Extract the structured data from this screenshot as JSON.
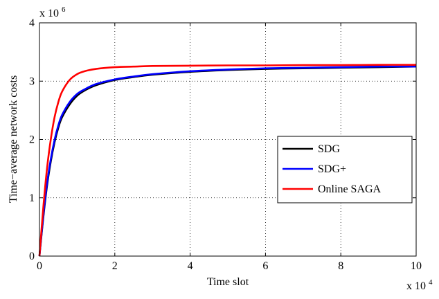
{
  "chart_data": {
    "type": "line",
    "title": "",
    "xlabel": "Time slot",
    "ylabel": "Time−average network costs",
    "x_multiplier_label": "x 10",
    "x_multiplier_exp": "4",
    "y_multiplier_label": "x 10",
    "y_multiplier_exp": "6",
    "xlim": [
      0,
      10
    ],
    "ylim": [
      0,
      4
    ],
    "xticks": [
      0,
      2,
      4,
      6,
      8,
      10
    ],
    "yticks": [
      0,
      1,
      2,
      3,
      4
    ],
    "xtick_labels": [
      "0",
      "2",
      "4",
      "6",
      "8",
      "10"
    ],
    "ytick_labels": [
      "0",
      "1",
      "2",
      "3",
      "4"
    ],
    "grid": true,
    "legend_position": "right-center",
    "series": [
      {
        "name": "SDG",
        "color": "#000000",
        "x": [
          0,
          0.1,
          0.2,
          0.3,
          0.4,
          0.5,
          0.6,
          0.8,
          1,
          1.2,
          1.5,
          2,
          2.5,
          3,
          4,
          5,
          6,
          7,
          8,
          9,
          10
        ],
        "y": [
          0,
          0.65,
          1.2,
          1.62,
          1.95,
          2.2,
          2.38,
          2.6,
          2.75,
          2.84,
          2.93,
          3.02,
          3.07,
          3.11,
          3.16,
          3.19,
          3.21,
          3.22,
          3.23,
          3.24,
          3.25
        ]
      },
      {
        "name": "SDG+",
        "color": "#0000ff",
        "x": [
          0,
          0.1,
          0.2,
          0.3,
          0.4,
          0.5,
          0.6,
          0.8,
          1,
          1.2,
          1.5,
          2,
          2.5,
          3,
          4,
          5,
          6,
          7,
          8,
          9,
          10
        ],
        "y": [
          0,
          0.68,
          1.24,
          1.66,
          1.99,
          2.24,
          2.42,
          2.64,
          2.78,
          2.86,
          2.95,
          3.03,
          3.08,
          3.12,
          3.17,
          3.2,
          3.22,
          3.23,
          3.24,
          3.25,
          3.25
        ]
      },
      {
        "name": "Online SAGA",
        "color": "#ff0000",
        "x": [
          0,
          0.1,
          0.2,
          0.3,
          0.4,
          0.5,
          0.6,
          0.8,
          1,
          1.2,
          1.5,
          2,
          2.5,
          3,
          4,
          5,
          6,
          7,
          8,
          9,
          10
        ],
        "y": [
          0,
          0.82,
          1.5,
          2.0,
          2.38,
          2.64,
          2.82,
          3.02,
          3.12,
          3.17,
          3.21,
          3.24,
          3.25,
          3.26,
          3.265,
          3.27,
          3.27,
          3.275,
          3.275,
          3.28,
          3.28
        ]
      }
    ]
  }
}
